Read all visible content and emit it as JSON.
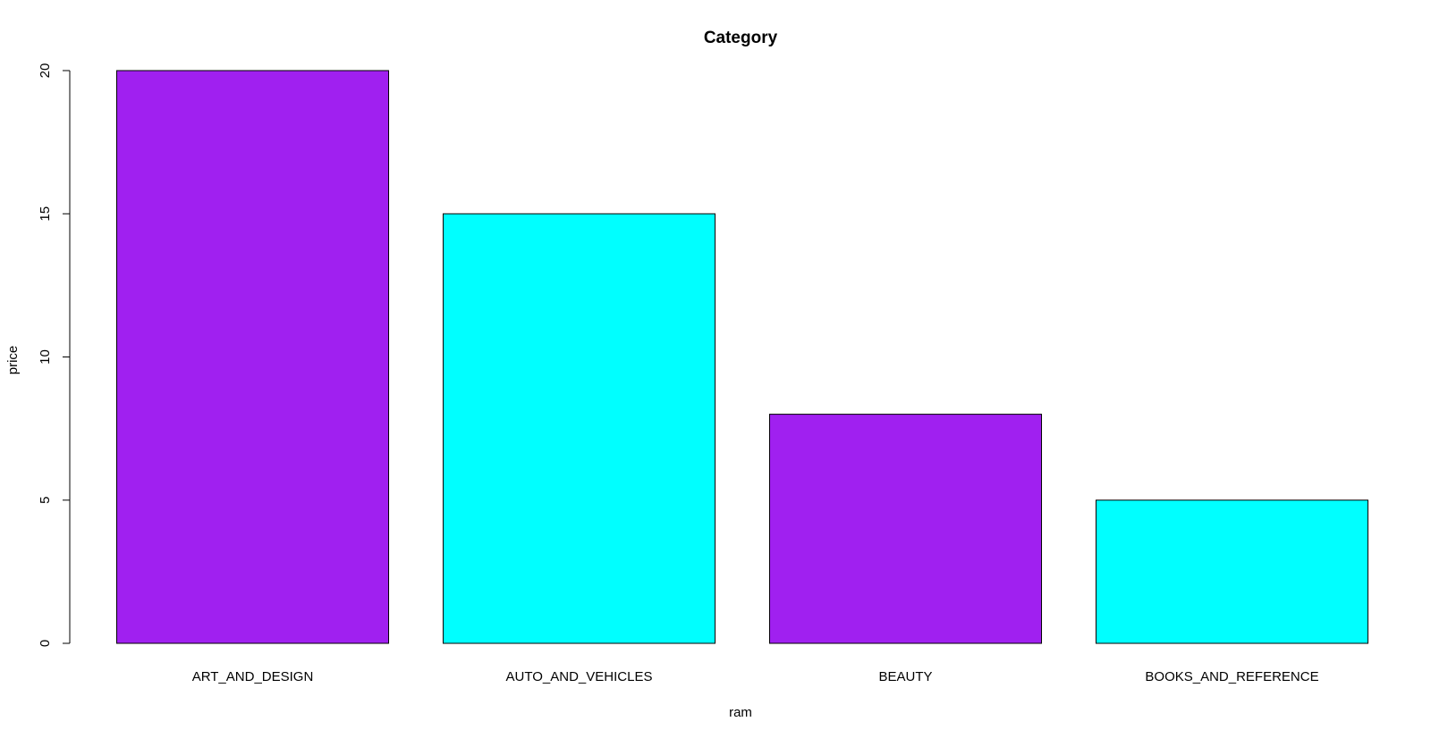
{
  "chart_data": {
    "type": "bar",
    "title": "Category",
    "xlabel": "ram",
    "ylabel": "price",
    "categories": [
      "ART_AND_DESIGN",
      "AUTO_AND_VEHICLES",
      "BEAUTY",
      "BOOKS_AND_REFERENCE"
    ],
    "values": [
      20,
      15,
      8,
      5
    ],
    "colors": [
      "#a020f0",
      "#00ffff",
      "#a020f0",
      "#00ffff"
    ],
    "ylim": [
      0,
      20
    ],
    "yticks": [
      "0",
      "5",
      "10",
      "15",
      "20"
    ],
    "grid": false,
    "legend": "none"
  }
}
